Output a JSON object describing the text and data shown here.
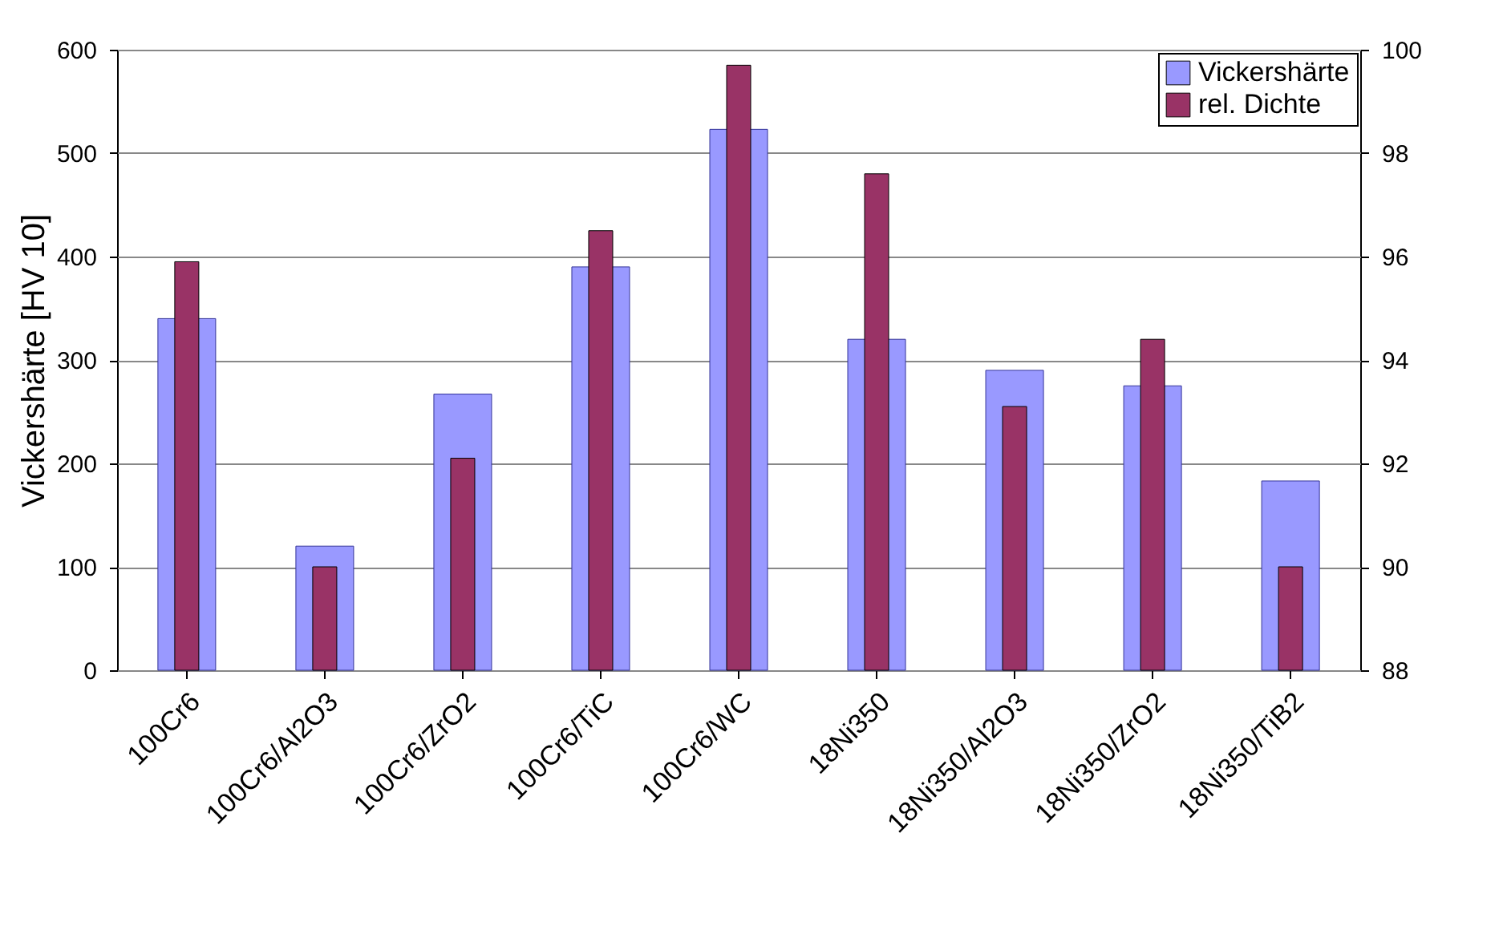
{
  "chart_data": {
    "type": "bar",
    "ylabel": "Vickershärte [HV 10]",
    "categories": [
      "100Cr6",
      "100Cr6/Al2O3",
      "100Cr6/ZrO2",
      "100Cr6/TiC",
      "100Cr6/WC",
      "18Ni350",
      "18Ni350/Al2O3",
      "18Ni350/ZrO2",
      "18Ni350/TiB2"
    ],
    "series": [
      {
        "name": "Vickershärte",
        "color": "#9999ff",
        "values": [
          340,
          120,
          267,
          390,
          523,
          320,
          290,
          275,
          183
        ]
      },
      {
        "name": "rel. Dichte",
        "color": "#993366",
        "axis": "y2",
        "values": [
          95.9,
          90,
          92.1,
          96.5,
          99.7,
          97.6,
          93.1,
          94.4,
          90
        ]
      }
    ],
    "ylim": [
      0,
      600
    ],
    "yticks": [
      0,
      100,
      200,
      300,
      400,
      500,
      600
    ],
    "y2lim": [
      88,
      100
    ],
    "y2ticks": [
      88,
      90,
      92,
      94,
      96,
      98,
      100
    ],
    "grid": "y",
    "legend": "top right"
  }
}
